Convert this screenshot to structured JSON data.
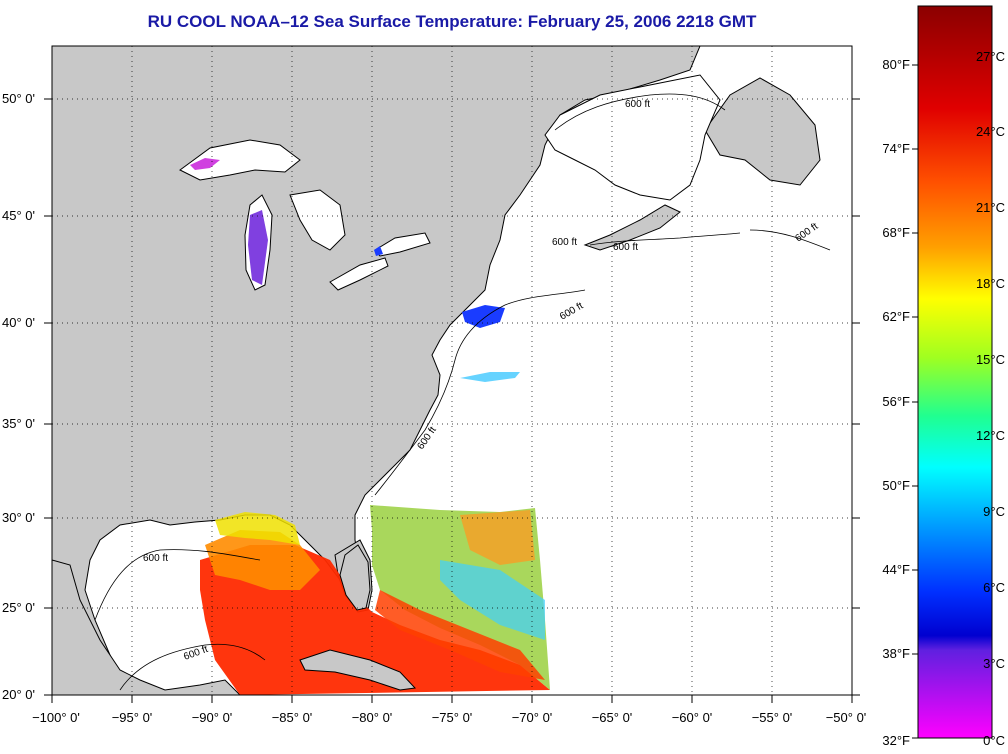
{
  "title": "RU COOL  NOAA–12  Sea Surface Temperature:  February 25, 2006 2218 GMT",
  "map": {
    "lon_range": [
      -100,
      -50
    ],
    "lat_range": [
      20,
      52.5
    ],
    "lon_ticks": [
      "−100° 0'",
      "−95° 0'",
      "−90° 0'",
      "−85° 0'",
      "−80° 0'",
      "−75° 0'",
      "−70° 0'",
      "−65° 0'",
      "−60° 0'",
      "−55° 0'",
      "−50° 0'"
    ],
    "lat_ticks": [
      "20° 0'",
      "25° 0'",
      "30° 0'",
      "35° 0'",
      "40° 0'",
      "45° 0'",
      "50° 0'"
    ],
    "contour_labels": [
      "600 ft",
      "600 ft",
      "600 ft",
      "600 ft",
      "600 ft",
      "600 ft",
      "600 ft",
      "600 ft"
    ],
    "land_color": "#c8c8c8",
    "ocean_color": "#ffffff",
    "grid": "dotted"
  },
  "colorbar": {
    "fahrenheit": [
      "80°F",
      "74°F",
      "68°F",
      "62°F",
      "56°F",
      "50°F",
      "44°F",
      "38°F",
      "32°F"
    ],
    "celsius": [
      "27°C",
      "24°C",
      "21°C",
      "18°C",
      "15°C",
      "12°C",
      "9°C",
      "6°C",
      "3°C",
      "0°C"
    ],
    "colors_top_to_bottom": [
      "#8b0000",
      "#ff0000",
      "#ff8000",
      "#ffff00",
      "#80ff00",
      "#00ff80",
      "#00ffff",
      "#0080ff",
      "#0000ff",
      "#8000ff",
      "#ff00ff"
    ]
  }
}
